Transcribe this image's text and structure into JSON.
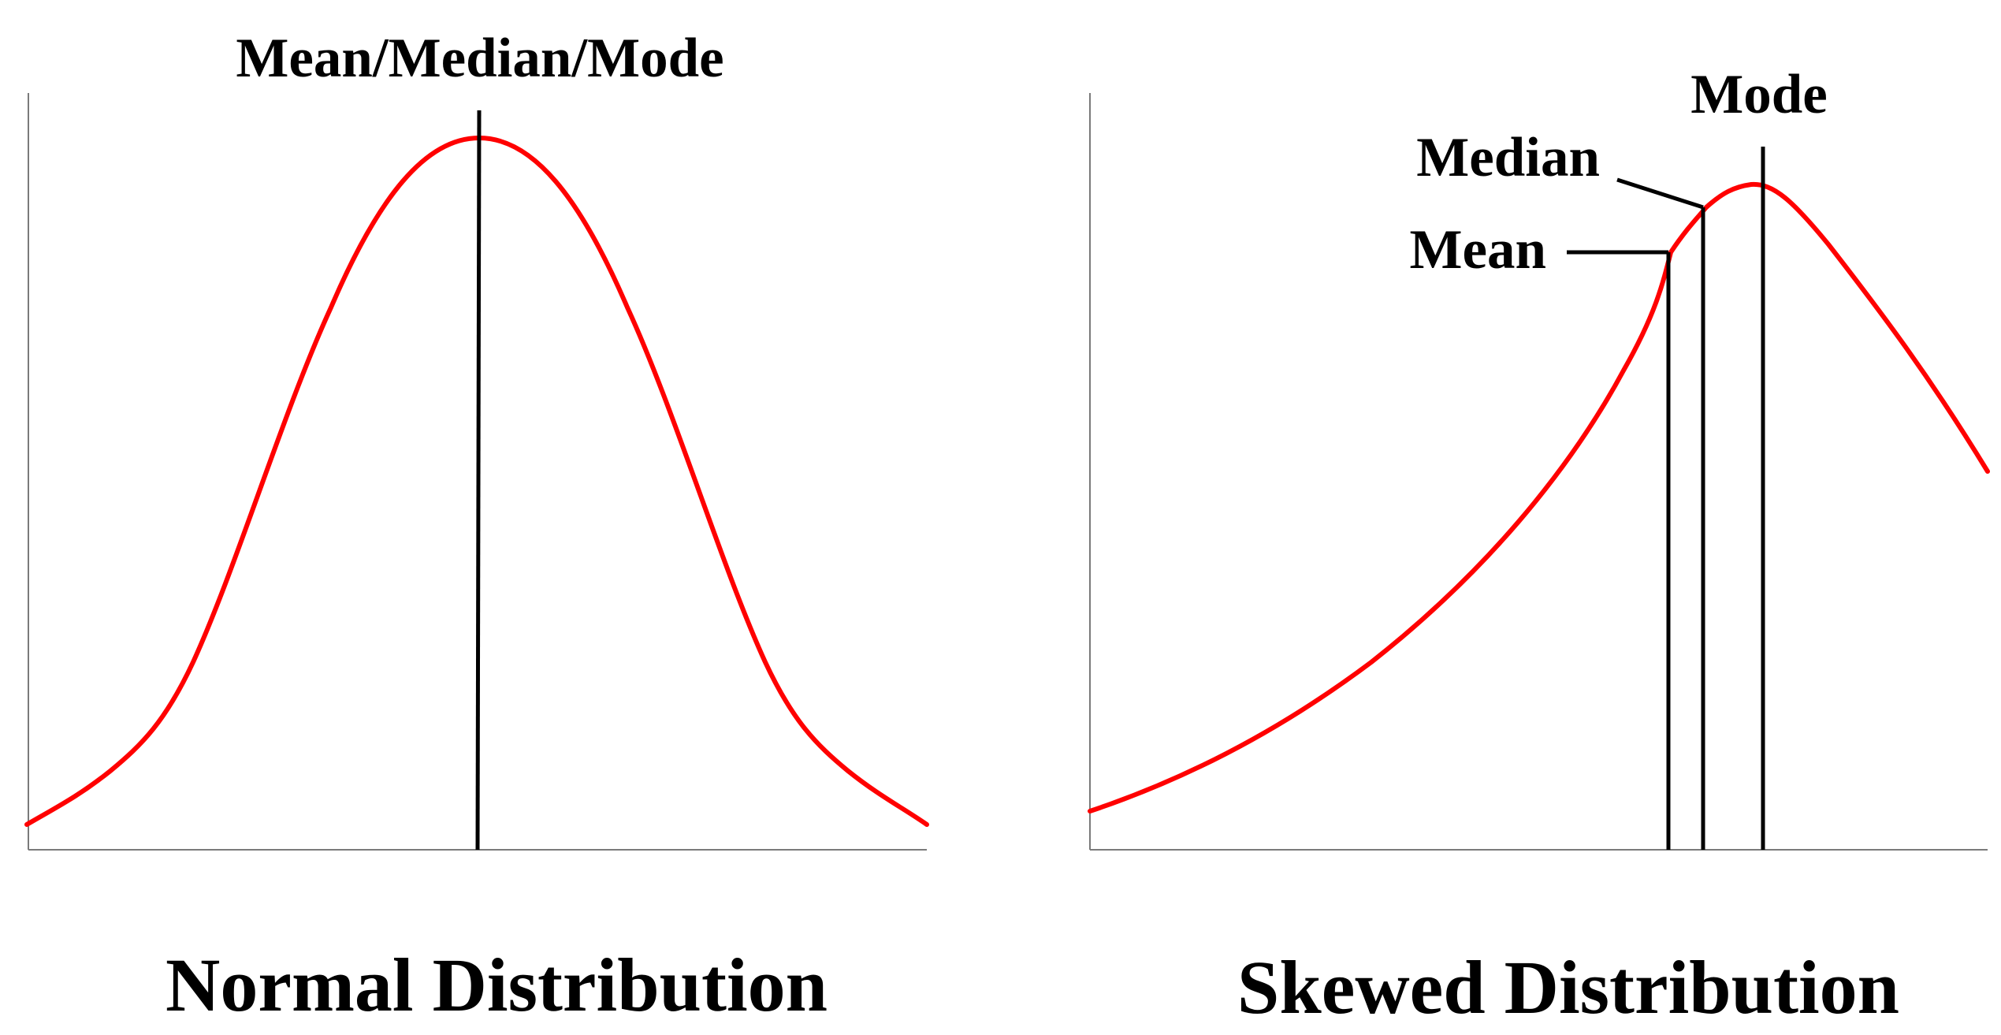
{
  "normal": {
    "peak_label": "Mean/Median/Mode",
    "caption": "Normal Distribution"
  },
  "skewed": {
    "mode_label": "Mode",
    "median_label": "Median",
    "mean_label": "Mean",
    "caption": "Skewed Distribution"
  },
  "colors": {
    "curve": "#ff0000",
    "lines": "#000000",
    "axes": "#7a7a7a"
  }
}
